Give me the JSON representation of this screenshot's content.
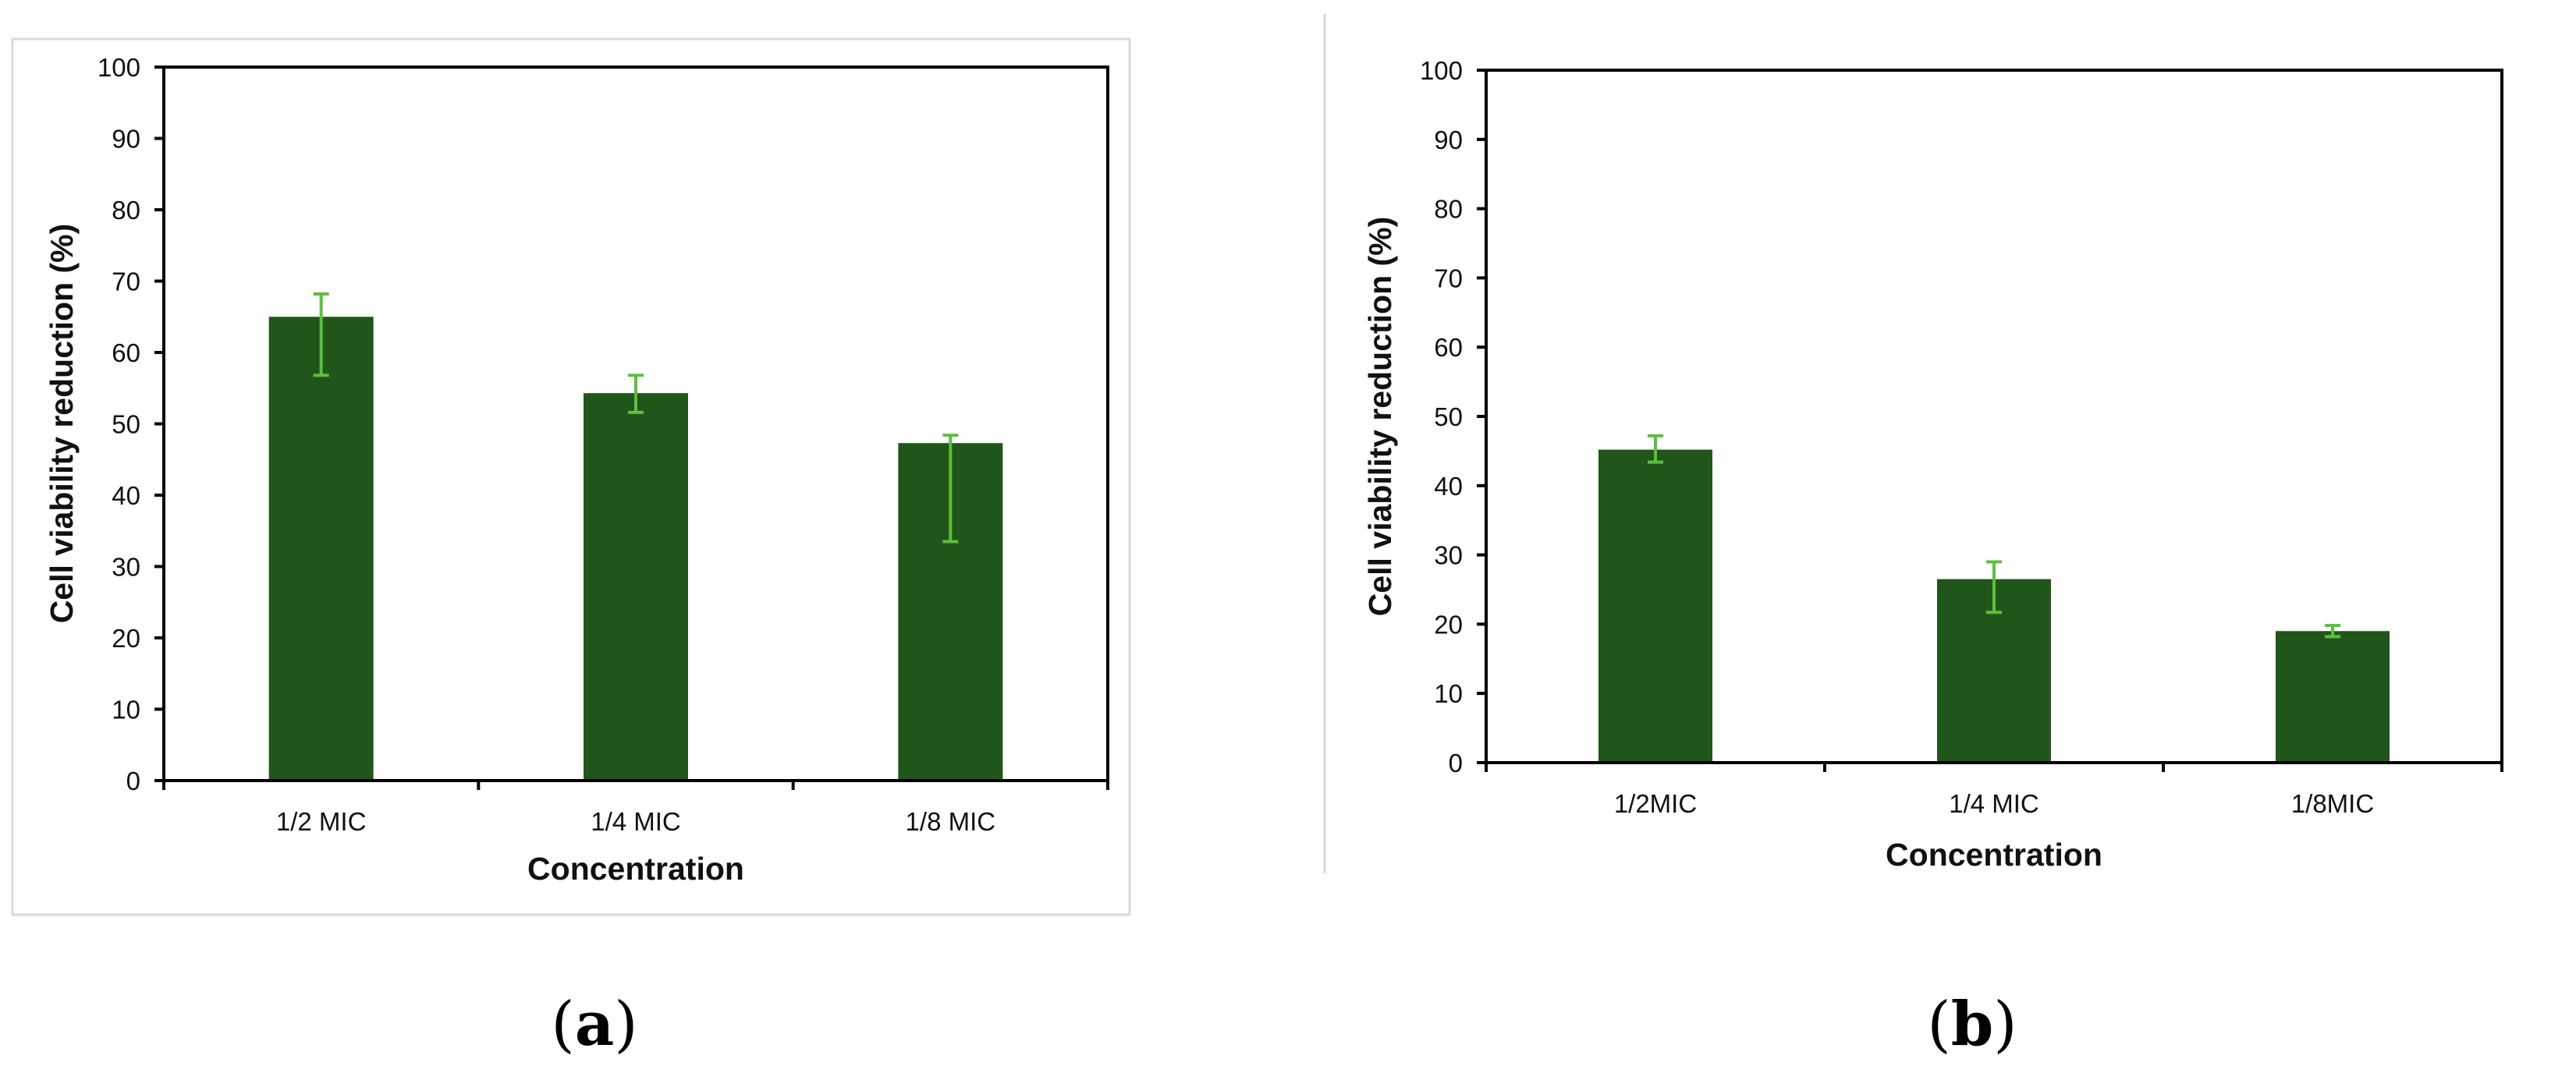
{
  "colors": {
    "bar": "#21561b",
    "error_bar": "#5cbf3f",
    "axis": "#000000"
  },
  "chart_data": [
    {
      "type": "bar",
      "panel_label": "a",
      "categories": [
        "1/2 MIC",
        "1/4 MIC",
        "1/8 MIC"
      ],
      "values": [
        65,
        54.3,
        47.3
      ],
      "error_low": [
        56.8,
        51.6,
        33.5
      ],
      "error_high": [
        68.2,
        56.8,
        48.4
      ],
      "xlabel": "Concentration",
      "ylabel": "Cell viability reduction (%)",
      "ylim": [
        0,
        100
      ],
      "yticks": [
        0,
        10,
        20,
        30,
        40,
        50,
        60,
        70,
        80,
        90,
        100
      ],
      "grid": false,
      "legend": "none"
    },
    {
      "type": "bar",
      "panel_label": "b",
      "categories": [
        "1/2MIC",
        "1/4 MIC",
        "1/8MIC"
      ],
      "values": [
        45.2,
        26.5,
        19
      ],
      "error_low": [
        43.4,
        21.7,
        18.2
      ],
      "error_high": [
        47.2,
        29,
        19.8
      ],
      "xlabel": "Concentration",
      "ylabel": "Cell viability reduction (%)",
      "ylim": [
        0,
        100
      ],
      "yticks": [
        0,
        10,
        20,
        30,
        40,
        50,
        60,
        70,
        80,
        90,
        100
      ],
      "grid": false,
      "legend": "none"
    }
  ]
}
